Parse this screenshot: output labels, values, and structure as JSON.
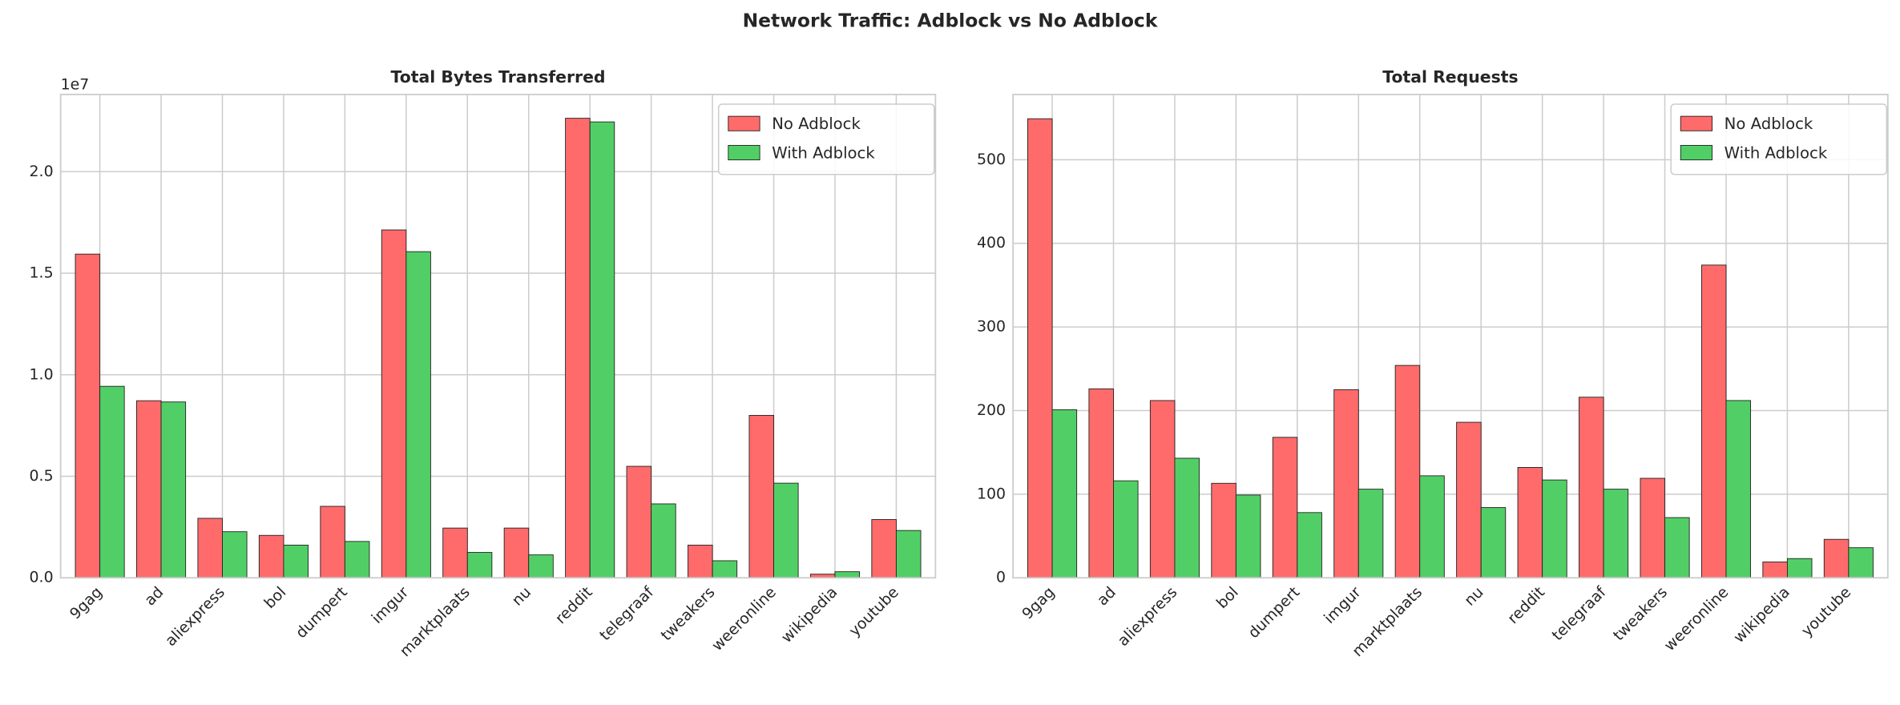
{
  "title": "Network Traffic: Adblock vs No Adblock",
  "chart_data": [
    {
      "type": "bar",
      "title": "Total Bytes Transferred",
      "offset_label": "1e7",
      "categories": [
        "9gag",
        "ad",
        "aliexpress",
        "bol",
        "dumpert",
        "imgur",
        "marktplaats",
        "nu",
        "reddit",
        "telegraaf",
        "tweakers",
        "weeronline",
        "wikipedia",
        "youtube"
      ],
      "series": [
        {
          "name": "No Adblock",
          "color": "#ff6b6b",
          "values": [
            15940000,
            8720000,
            2930000,
            2090000,
            3520000,
            17130000,
            2450000,
            2450000,
            22630000,
            5490000,
            1610000,
            8000000,
            180000,
            2870000
          ]
        },
        {
          "name": "With Adblock",
          "color": "#51cf66",
          "values": [
            9430000,
            8660000,
            2270000,
            1610000,
            1790000,
            16060000,
            1250000,
            1130000,
            22450000,
            3640000,
            840000,
            4660000,
            300000,
            2330000
          ]
        }
      ],
      "ylim": [
        0,
        23800000
      ],
      "yticks": [
        {
          "value": 0,
          "label": "0.0"
        },
        {
          "value": 5000000,
          "label": "0.5"
        },
        {
          "value": 10000000,
          "label": "1.0"
        },
        {
          "value": 15000000,
          "label": "1.5"
        },
        {
          "value": 20000000,
          "label": "2.0"
        }
      ],
      "grid": true,
      "legend": "upper right"
    },
    {
      "type": "bar",
      "title": "Total Requests",
      "categories": [
        "9gag",
        "ad",
        "aliexpress",
        "bol",
        "dumpert",
        "imgur",
        "marktplaats",
        "nu",
        "reddit",
        "telegraaf",
        "tweakers",
        "weeronline",
        "wikipedia",
        "youtube"
      ],
      "series": [
        {
          "name": "No Adblock",
          "color": "#ff6b6b",
          "values": [
            549,
            226,
            212,
            113,
            168,
            225,
            254,
            186,
            132,
            216,
            119,
            374,
            19,
            46
          ]
        },
        {
          "name": "With Adblock",
          "color": "#51cf66",
          "values": [
            201,
            116,
            143,
            99,
            78,
            106,
            122,
            84,
            117,
            106,
            72,
            212,
            23,
            36
          ]
        }
      ],
      "ylim": [
        0,
        578
      ],
      "yticks": [
        0,
        100,
        200,
        300,
        400,
        500
      ],
      "grid": true,
      "legend": "upper right"
    }
  ]
}
